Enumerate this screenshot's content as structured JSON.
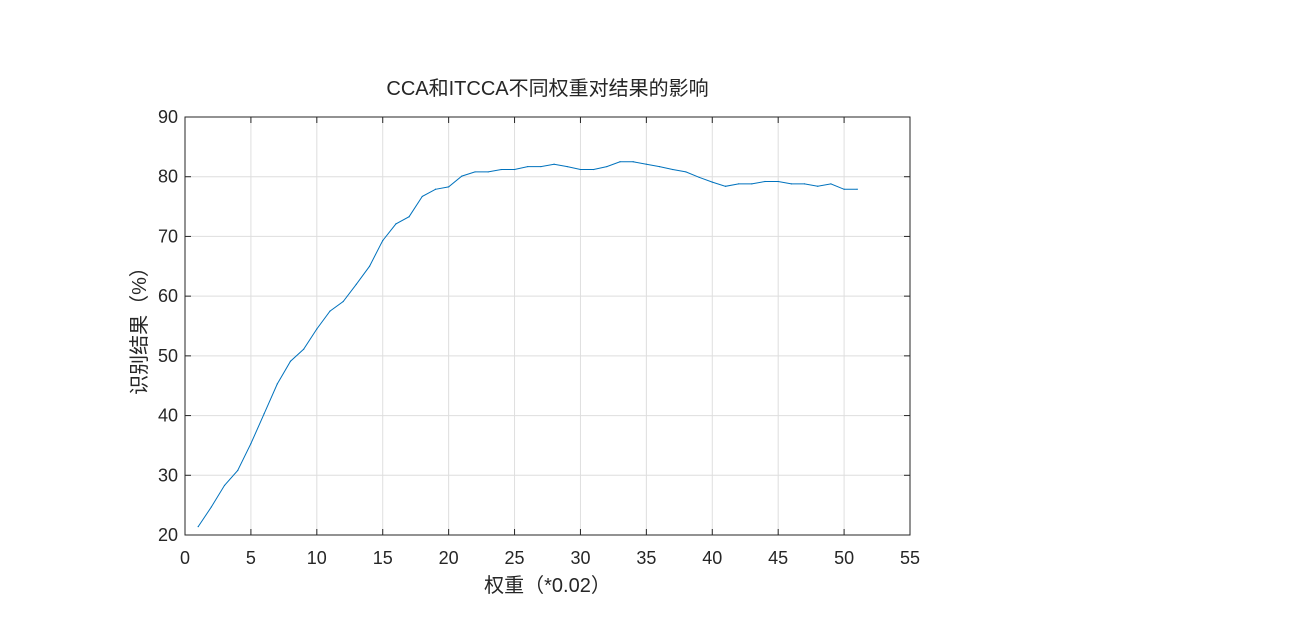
{
  "chart_data": {
    "type": "line",
    "title": "CCA和ITCCA不同权重对结果的影响",
    "xlabel": "权重（*0.02）",
    "ylabel": "识别结果（%）",
    "xlim": [
      0,
      55
    ],
    "ylim": [
      20,
      90
    ],
    "xticks": [
      "0",
      "5",
      "10",
      "15",
      "20",
      "25",
      "30",
      "35",
      "40",
      "45",
      "50",
      "55"
    ],
    "yticks": [
      "20",
      "30",
      "40",
      "50",
      "60",
      "70",
      "80",
      "90"
    ],
    "grid": true,
    "line_color": "#0072BD",
    "series": [
      {
        "x": [
          1,
          2,
          3,
          4,
          5,
          6,
          7,
          8,
          9,
          10,
          11,
          12,
          13,
          14,
          15,
          16,
          17,
          18,
          19,
          20,
          21,
          22,
          23,
          24,
          25,
          26,
          27,
          28,
          29,
          30,
          31,
          32,
          33,
          34,
          35,
          36,
          37,
          38,
          39,
          40,
          41,
          42,
          43,
          44,
          45,
          46,
          47,
          48,
          49,
          50,
          51
        ],
        "values": [
          21.4,
          24.7,
          28.3,
          30.8,
          35.3,
          40.3,
          45.3,
          49.1,
          51.1,
          54.5,
          57.5,
          59.1,
          62.0,
          65.0,
          69.3,
          72.1,
          73.3,
          76.7,
          77.9,
          78.3,
          80.1,
          80.8,
          80.8,
          81.2,
          81.2,
          81.7,
          81.7,
          82.1,
          81.7,
          81.2,
          81.2,
          81.7,
          82.5,
          82.5,
          82.1,
          81.7,
          81.2,
          80.8,
          79.9,
          79.1,
          78.4,
          78.8,
          78.8,
          79.2,
          79.2,
          78.8,
          78.8,
          78.4,
          78.8,
          77.9,
          77.9
        ]
      }
    ]
  }
}
